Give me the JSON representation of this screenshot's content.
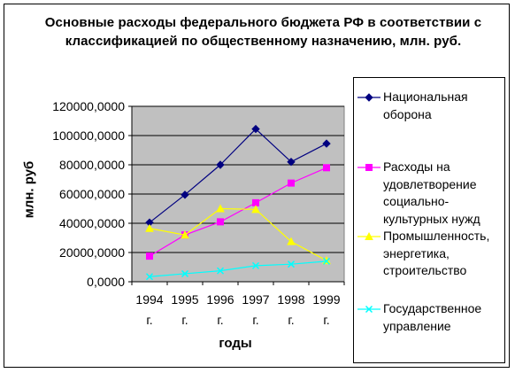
{
  "title": "Основные расходы федерального бюджета РФ в соответствии с классификацией по общественному назначению, млн. руб.",
  "chart_data": {
    "type": "line",
    "title": "Основные расходы федерального бюджета РФ в соответствии с классификацией по общественному назначению, млн. руб.",
    "xlabel": "годы",
    "ylabel": "млн. руб",
    "categories": [
      "1994 г.",
      "1995 г.",
      "1996 г.",
      "1997 г.",
      "1998 г.",
      "1999 г."
    ],
    "ylim": [
      0,
      120000
    ],
    "yticks": [
      "0,0000",
      "20000,0000",
      "40000,0000",
      "60000,0000",
      "80000,0000",
      "100000,0000",
      "120000,0000"
    ],
    "grid": true,
    "legend_position": "right",
    "series": [
      {
        "name": "Национальная оборона",
        "color": "#000080",
        "marker": "diamond",
        "values": [
          40500,
          59500,
          80000,
          104500,
          82000,
          94500
        ]
      },
      {
        "name": "Расходы на удовлетворение социально-культурных нужд",
        "color": "#ff00ff",
        "marker": "square",
        "values": [
          17500,
          32000,
          41000,
          54000,
          67500,
          78000
        ]
      },
      {
        "name": "Промышленность, энергетика, строительство",
        "color": "#ffff00",
        "marker": "triangle",
        "values": [
          36500,
          32000,
          50000,
          49500,
          27500,
          14500
        ]
      },
      {
        "name": "Государственное управление",
        "color": "#00ffff",
        "marker": "x",
        "values": [
          3500,
          5500,
          7500,
          11000,
          12000,
          14000
        ]
      }
    ]
  },
  "colors": {
    "plot_background": "#c0c0c0",
    "gridline": "#000000"
  }
}
